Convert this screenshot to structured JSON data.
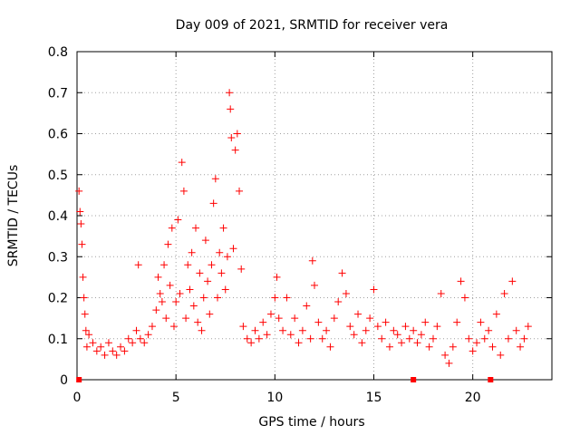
{
  "chart_data": {
    "type": "scatter",
    "title": "Day 009 of 2021, SRMTID for receiver vera",
    "xlabel": "GPS time / hours",
    "ylabel": "SRMTID / TECUs",
    "xlim": [
      0,
      24
    ],
    "ylim": [
      0,
      0.8
    ],
    "xticks": [
      0,
      5,
      10,
      15,
      20
    ],
    "xtick_labels": [
      "0",
      "5",
      "10",
      "15",
      "20"
    ],
    "yticks": [
      0,
      0.1,
      0.2,
      0.3,
      0.4,
      0.5,
      0.6,
      0.7,
      0.8
    ],
    "ytick_labels": [
      "0",
      "0.1",
      "0.2",
      "0.3",
      "0.4",
      "0.5",
      "0.6",
      "0.7",
      "0.8"
    ],
    "grid": true,
    "marker": "+",
    "color": "#ff0000",
    "zero_markers_x": [
      0.1,
      17.0,
      20.9
    ],
    "series": [
      {
        "name": "SRMTID",
        "x": [
          0.1,
          0.15,
          0.2,
          0.25,
          0.3,
          0.35,
          0.4,
          0.45,
          0.5,
          0.6,
          0.8,
          1.0,
          1.2,
          1.4,
          1.6,
          1.8,
          2.0,
          2.2,
          2.4,
          2.6,
          2.8,
          3.0,
          3.1,
          3.2,
          3.4,
          3.6,
          3.8,
          4.0,
          4.1,
          4.2,
          4.3,
          4.4,
          4.5,
          4.6,
          4.7,
          4.8,
          4.9,
          5.0,
          5.1,
          5.2,
          5.3,
          5.4,
          5.5,
          5.6,
          5.7,
          5.8,
          5.9,
          6.0,
          6.1,
          6.2,
          6.3,
          6.4,
          6.5,
          6.6,
          6.7,
          6.8,
          6.9,
          7.0,
          7.1,
          7.2,
          7.3,
          7.4,
          7.5,
          7.6,
          7.7,
          7.75,
          7.8,
          7.9,
          8.0,
          8.1,
          8.2,
          8.3,
          8.4,
          8.6,
          8.8,
          9.0,
          9.2,
          9.4,
          9.6,
          9.8,
          10.0,
          10.1,
          10.2,
          10.4,
          10.6,
          10.8,
          11.0,
          11.2,
          11.4,
          11.6,
          11.8,
          11.9,
          12.0,
          12.2,
          12.4,
          12.6,
          12.8,
          13.0,
          13.2,
          13.4,
          13.6,
          13.8,
          14.0,
          14.2,
          14.4,
          14.6,
          14.8,
          15.0,
          15.2,
          15.4,
          15.6,
          15.8,
          16.0,
          16.2,
          16.4,
          16.6,
          16.8,
          17.0,
          17.2,
          17.4,
          17.6,
          17.8,
          18.0,
          18.2,
          18.4,
          18.6,
          18.8,
          19.0,
          19.2,
          19.4,
          19.6,
          19.8,
          20.0,
          20.2,
          20.4,
          20.6,
          20.8,
          21.0,
          21.2,
          21.4,
          21.6,
          21.8,
          22.0,
          22.2,
          22.4,
          22.6,
          22.8
        ],
        "y": [
          0.46,
          0.41,
          0.38,
          0.33,
          0.25,
          0.2,
          0.16,
          0.12,
          0.08,
          0.11,
          0.09,
          0.07,
          0.08,
          0.06,
          0.09,
          0.07,
          0.06,
          0.08,
          0.07,
          0.1,
          0.09,
          0.12,
          0.28,
          0.1,
          0.09,
          0.11,
          0.13,
          0.17,
          0.25,
          0.21,
          0.19,
          0.28,
          0.15,
          0.33,
          0.23,
          0.37,
          0.13,
          0.19,
          0.39,
          0.21,
          0.53,
          0.46,
          0.15,
          0.28,
          0.22,
          0.31,
          0.18,
          0.37,
          0.14,
          0.26,
          0.12,
          0.2,
          0.34,
          0.24,
          0.16,
          0.28,
          0.43,
          0.49,
          0.2,
          0.31,
          0.26,
          0.37,
          0.22,
          0.3,
          0.7,
          0.66,
          0.59,
          0.32,
          0.56,
          0.6,
          0.46,
          0.27,
          0.13,
          0.1,
          0.09,
          0.12,
          0.1,
          0.14,
          0.11,
          0.16,
          0.2,
          0.25,
          0.15,
          0.12,
          0.2,
          0.11,
          0.15,
          0.09,
          0.12,
          0.18,
          0.1,
          0.29,
          0.23,
          0.14,
          0.1,
          0.12,
          0.08,
          0.15,
          0.19,
          0.26,
          0.21,
          0.13,
          0.11,
          0.16,
          0.09,
          0.12,
          0.15,
          0.22,
          0.13,
          0.1,
          0.14,
          0.08,
          0.12,
          0.11,
          0.09,
          0.13,
          0.1,
          0.12,
          0.09,
          0.11,
          0.14,
          0.08,
          0.1,
          0.13,
          0.21,
          0.06,
          0.04,
          0.08,
          0.14,
          0.24,
          0.2,
          0.1,
          0.07,
          0.09,
          0.14,
          0.1,
          0.12,
          0.08,
          0.16,
          0.06,
          0.21,
          0.1,
          0.24,
          0.12,
          0.08,
          0.1,
          0.13
        ]
      }
    ]
  }
}
